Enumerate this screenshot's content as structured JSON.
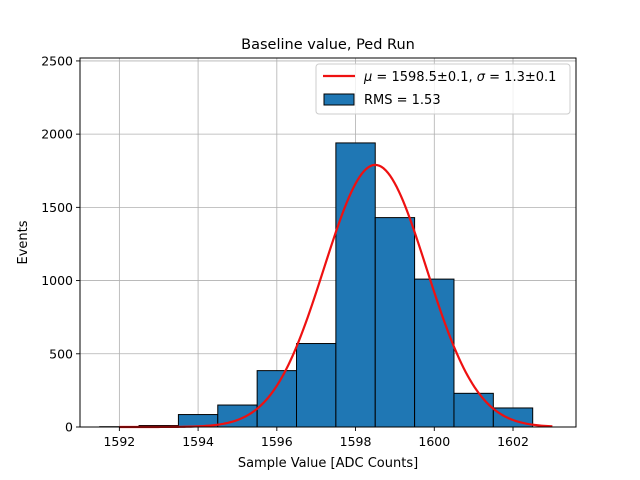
{
  "chart_data": {
    "type": "bar",
    "title": "Baseline value, Ped Run",
    "xlabel": "Sample Value [ADC Counts]",
    "ylabel": "Events",
    "xlim": [
      1591.0,
      1603.6
    ],
    "ylim": [
      0,
      2520
    ],
    "xticks": [
      1592,
      1594,
      1596,
      1598,
      1600,
      1602
    ],
    "yticks": [
      0,
      500,
      1000,
      1500,
      2000,
      2500
    ],
    "grid": true,
    "legend_position": "top-right",
    "histogram": {
      "name": "RMS = 1.53",
      "color": "#1f77b4",
      "edgecolor": "#000000",
      "bin_edges": [
        1591.5,
        1592.5,
        1593.5,
        1594.5,
        1595.5,
        1596.5,
        1597.5,
        1598.5,
        1599.5,
        1600.5,
        1601.5,
        1602.5
      ],
      "counts": [
        2,
        10,
        85,
        150,
        385,
        570,
        1940,
        1430,
        1010,
        230,
        130
      ]
    },
    "fit": {
      "name_mu_symbol": "μ",
      "name_mu_value": " = 1598.5±0.1, ",
      "name_sigma_symbol": "σ",
      "name_sigma_value": " = 1.3±0.1",
      "color": "#ee1111",
      "mu": 1598.5,
      "sigma": 1.3,
      "amplitude": 1790,
      "x_range": [
        1592,
        1603
      ]
    }
  }
}
